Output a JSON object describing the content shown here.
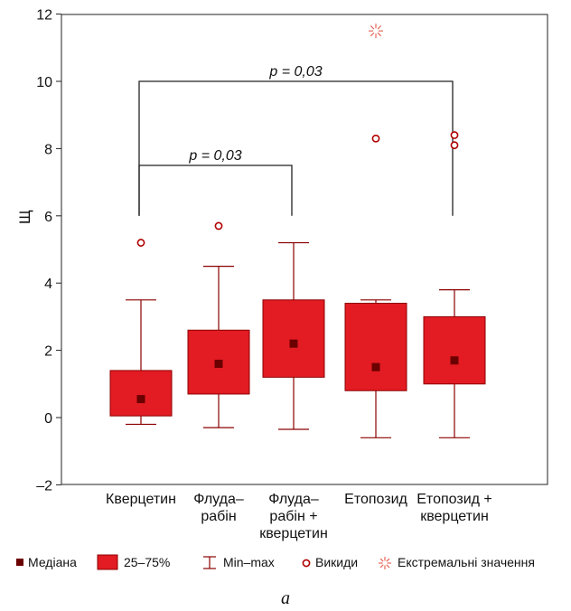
{
  "chart_data": {
    "type": "box",
    "ylabel": "Щ",
    "ylim": [
      -2,
      12
    ],
    "yticks": [
      -2,
      0,
      2,
      4,
      6,
      8,
      10,
      12
    ],
    "ytick_labels": [
      "–2",
      "0",
      "2",
      "4",
      "6",
      "8",
      "10",
      "12"
    ],
    "grid": false,
    "color": "#e31b23",
    "edge_color": "#8b0000",
    "categories": [
      [
        "Кверцетин"
      ],
      [
        "Флуда–",
        "рабін"
      ],
      [
        "Флуда–",
        "рабін +",
        "кверцетин"
      ],
      [
        "Етопозид"
      ],
      [
        "Етопозид +",
        "кверцетин"
      ]
    ],
    "boxes": [
      {
        "min": -0.2,
        "q1": 0.05,
        "median": 0.55,
        "q3": 1.4,
        "max": 3.5,
        "outliers": [
          5.2
        ],
        "extremes": []
      },
      {
        "min": -0.3,
        "q1": 0.7,
        "median": 1.6,
        "q3": 2.6,
        "max": 4.5,
        "outliers": [
          5.7
        ],
        "extremes": []
      },
      {
        "min": -0.35,
        "q1": 1.2,
        "median": 2.2,
        "q3": 3.5,
        "max": 5.2,
        "outliers": [],
        "extremes": []
      },
      {
        "min": -0.6,
        "q1": 0.8,
        "median": 1.5,
        "q3": 3.4,
        "max": 3.5,
        "outliers": [
          8.3
        ],
        "extremes": [
          11.5
        ]
      },
      {
        "min": -0.6,
        "q1": 1.0,
        "median": 1.7,
        "q3": 3.0,
        "max": 3.8,
        "outliers": [
          8.4,
          8.1
        ],
        "extremes": []
      }
    ],
    "comparisons": [
      {
        "from": 0,
        "to": 2,
        "label": "p = 0,03",
        "y": 7.5,
        "drop": 6.0
      },
      {
        "from": 0,
        "to": 4,
        "label": "p = 0,03",
        "y": 10.0,
        "drop": 6.0
      }
    ],
    "legend": {
      "position": "bottom",
      "median": "Медіана",
      "box": "25–75%",
      "whisker": "Min–max",
      "outlier": "Викиди",
      "extreme": "Екстремальні значення"
    },
    "panel_label": "а"
  }
}
